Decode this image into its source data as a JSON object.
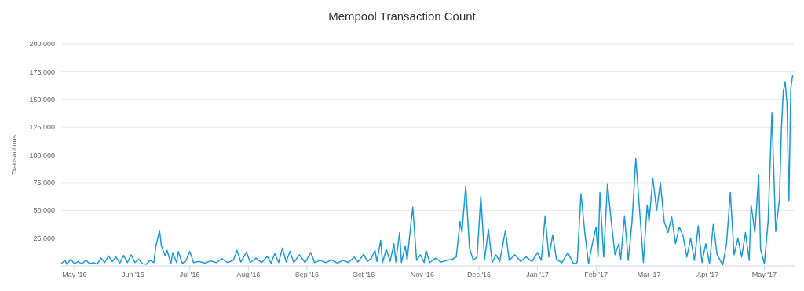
{
  "chart_data": {
    "type": "line",
    "title": "Mempool Transaction Count",
    "ylabel": "Transactions",
    "grid": "y",
    "marker": "none",
    "line_style": "solid",
    "xlim": [
      "2016-04-24",
      "2017-05-17"
    ],
    "xticks": [
      {
        "value": "2016-05-01",
        "label": "May '16"
      },
      {
        "value": "2016-06-01",
        "label": "Jun '16"
      },
      {
        "value": "2016-07-01",
        "label": "Jul '16"
      },
      {
        "value": "2016-08-01",
        "label": "Aug '16"
      },
      {
        "value": "2016-09-01",
        "label": "Sep '16"
      },
      {
        "value": "2016-10-01",
        "label": "Oct '16"
      },
      {
        "value": "2016-11-01",
        "label": "Nov '16"
      },
      {
        "value": "2016-12-01",
        "label": "Dec '16"
      },
      {
        "value": "2017-01-01",
        "label": "Jan '17"
      },
      {
        "value": "2017-02-01",
        "label": "Feb '17"
      },
      {
        "value": "2017-03-01",
        "label": "Mar '17"
      },
      {
        "value": "2017-04-01",
        "label": "Apr '17"
      },
      {
        "value": "2017-05-01",
        "label": "May '17"
      }
    ],
    "ylim": [
      0,
      200000
    ],
    "yticks": [
      {
        "value": 25000,
        "label": "25,000"
      },
      {
        "value": 50000,
        "label": "50,000"
      },
      {
        "value": 75000,
        "label": "75,000"
      },
      {
        "value": 100000,
        "label": "100,000"
      },
      {
        "value": 125000,
        "label": "125,000"
      },
      {
        "value": 150000,
        "label": "150,000"
      },
      {
        "value": 175000,
        "label": "175,000"
      },
      {
        "value": 200000,
        "label": "200,000"
      }
    ],
    "x": [
      "2016-04-24",
      "2016-04-26",
      "2016-04-27",
      "2016-04-29",
      "2016-05-01",
      "2016-05-03",
      "2016-05-05",
      "2016-05-07",
      "2016-05-09",
      "2016-05-11",
      "2016-05-13",
      "2016-05-15",
      "2016-05-17",
      "2016-05-19",
      "2016-05-21",
      "2016-05-23",
      "2016-05-25",
      "2016-05-27",
      "2016-05-29",
      "2016-05-31",
      "2016-06-02",
      "2016-06-04",
      "2016-06-06",
      "2016-06-08",
      "2016-06-10",
      "2016-06-12",
      "2016-06-13",
      "2016-06-15",
      "2016-06-16",
      "2016-06-18",
      "2016-06-19",
      "2016-06-21",
      "2016-06-22",
      "2016-06-24",
      "2016-06-25",
      "2016-06-27",
      "2016-06-29",
      "2016-07-01",
      "2016-07-03",
      "2016-07-06",
      "2016-07-09",
      "2016-07-12",
      "2016-07-15",
      "2016-07-18",
      "2016-07-21",
      "2016-07-24",
      "2016-07-26",
      "2016-07-28",
      "2016-07-31",
      "2016-08-02",
      "2016-08-05",
      "2016-08-08",
      "2016-08-11",
      "2016-08-13",
      "2016-08-15",
      "2016-08-17",
      "2016-08-19",
      "2016-08-21",
      "2016-08-23",
      "2016-08-25",
      "2016-08-28",
      "2016-08-31",
      "2016-09-03",
      "2016-09-05",
      "2016-09-08",
      "2016-09-11",
      "2016-09-14",
      "2016-09-17",
      "2016-09-20",
      "2016-09-23",
      "2016-09-26",
      "2016-09-28",
      "2016-10-01",
      "2016-10-03",
      "2016-10-05",
      "2016-10-07",
      "2016-10-08",
      "2016-10-10",
      "2016-10-11",
      "2016-10-13",
      "2016-10-15",
      "2016-10-17",
      "2016-10-18",
      "2016-10-20",
      "2016-10-21",
      "2016-10-23",
      "2016-10-24",
      "2016-10-26",
      "2016-10-27",
      "2016-10-29",
      "2016-10-31",
      "2016-11-02",
      "2016-11-03",
      "2016-11-05",
      "2016-11-08",
      "2016-11-11",
      "2016-11-14",
      "2016-11-17",
      "2016-11-19",
      "2016-11-21",
      "2016-11-22",
      "2016-11-24",
      "2016-11-26",
      "2016-11-28",
      "2016-11-30",
      "2016-12-02",
      "2016-12-04",
      "2016-12-06",
      "2016-12-08",
      "2016-12-10",
      "2016-12-12",
      "2016-12-15",
      "2016-12-17",
      "2016-12-20",
      "2016-12-23",
      "2016-12-26",
      "2016-12-29",
      "2017-01-01",
      "2017-01-03",
      "2017-01-05",
      "2017-01-07",
      "2017-01-09",
      "2017-01-11",
      "2017-01-14",
      "2017-01-17",
      "2017-01-20",
      "2017-01-22",
      "2017-01-24",
      "2017-01-26",
      "2017-01-28",
      "2017-01-30",
      "2017-02-01",
      "2017-02-02",
      "2017-02-03",
      "2017-02-05",
      "2017-02-07",
      "2017-02-09",
      "2017-02-11",
      "2017-02-13",
      "2017-02-14",
      "2017-02-16",
      "2017-02-18",
      "2017-02-20",
      "2017-02-22",
      "2017-02-24",
      "2017-02-26",
      "2017-02-28",
      "2017-03-01",
      "2017-03-03",
      "2017-03-05",
      "2017-03-07",
      "2017-03-09",
      "2017-03-11",
      "2017-03-13",
      "2017-03-15",
      "2017-03-17",
      "2017-03-19",
      "2017-03-21",
      "2017-03-23",
      "2017-03-25",
      "2017-03-27",
      "2017-03-29",
      "2017-03-31",
      "2017-04-02",
      "2017-04-04",
      "2017-04-06",
      "2017-04-09",
      "2017-04-11",
      "2017-04-13",
      "2017-04-15",
      "2017-04-17",
      "2017-04-19",
      "2017-04-21",
      "2017-04-23",
      "2017-04-24",
      "2017-04-26",
      "2017-04-28",
      "2017-04-29",
      "2017-05-01",
      "2017-05-03",
      "2017-05-05",
      "2017-05-07",
      "2017-05-09",
      "2017-05-10",
      "2017-05-11",
      "2017-05-12",
      "2017-05-13",
      "2017-05-14",
      "2017-05-15",
      "2017-05-16"
    ],
    "series": [
      {
        "color": "#1a9bd7",
        "values": [
          2000,
          5000,
          1500,
          6000,
          2000,
          4000,
          1500,
          5500,
          2000,
          3000,
          1500,
          7000,
          3000,
          9000,
          4000,
          8000,
          2500,
          9500,
          3000,
          10000,
          3000,
          6000,
          2000,
          1500,
          5000,
          3000,
          17000,
          32000,
          18000,
          9000,
          14000,
          2000,
          12000,
          3000,
          13000,
          2000,
          5000,
          13000,
          3000,
          4000,
          2500,
          4500,
          3000,
          6500,
          3000,
          5000,
          14000,
          3500,
          12500,
          3000,
          7000,
          3000,
          8500,
          2500,
          11000,
          3000,
          16000,
          3500,
          13000,
          3000,
          10000,
          3000,
          12000,
          3000,
          5000,
          3000,
          5500,
          2500,
          5000,
          3000,
          8000,
          3500,
          10500,
          4000,
          7000,
          14000,
          4000,
          23000,
          3000,
          15000,
          4000,
          20000,
          3500,
          30000,
          3000,
          18000,
          5000,
          38000,
          53000,
          5000,
          10000,
          3000,
          14000,
          3000,
          7000,
          3500,
          5000,
          6000,
          8000,
          40000,
          30000,
          72000,
          16000,
          5000,
          8000,
          63000,
          6000,
          33000,
          3000,
          10000,
          4000,
          32000,
          5000,
          10000,
          4000,
          8000,
          4000,
          12000,
          5000,
          45000,
          8000,
          28000,
          6000,
          3000,
          12000,
          2000,
          3000,
          65000,
          30000,
          2000,
          20000,
          35000,
          8000,
          66000,
          8000,
          74000,
          40000,
          10000,
          20000,
          6000,
          45000,
          5000,
          40000,
          97000,
          50000,
          3000,
          55000,
          40000,
          79000,
          50000,
          75000,
          40000,
          30000,
          44000,
          20000,
          35000,
          27000,
          8000,
          25000,
          5000,
          36000,
          3000,
          20000,
          2000,
          38000,
          10000,
          1000,
          20000,
          66000,
          10000,
          25000,
          8000,
          30000,
          5000,
          55000,
          30000,
          82000,
          15000,
          2000,
          40000,
          138000,
          31000,
          60000,
          122000,
          157000,
          166000,
          146000,
          59000,
          160000,
          172000
        ]
      }
    ]
  }
}
